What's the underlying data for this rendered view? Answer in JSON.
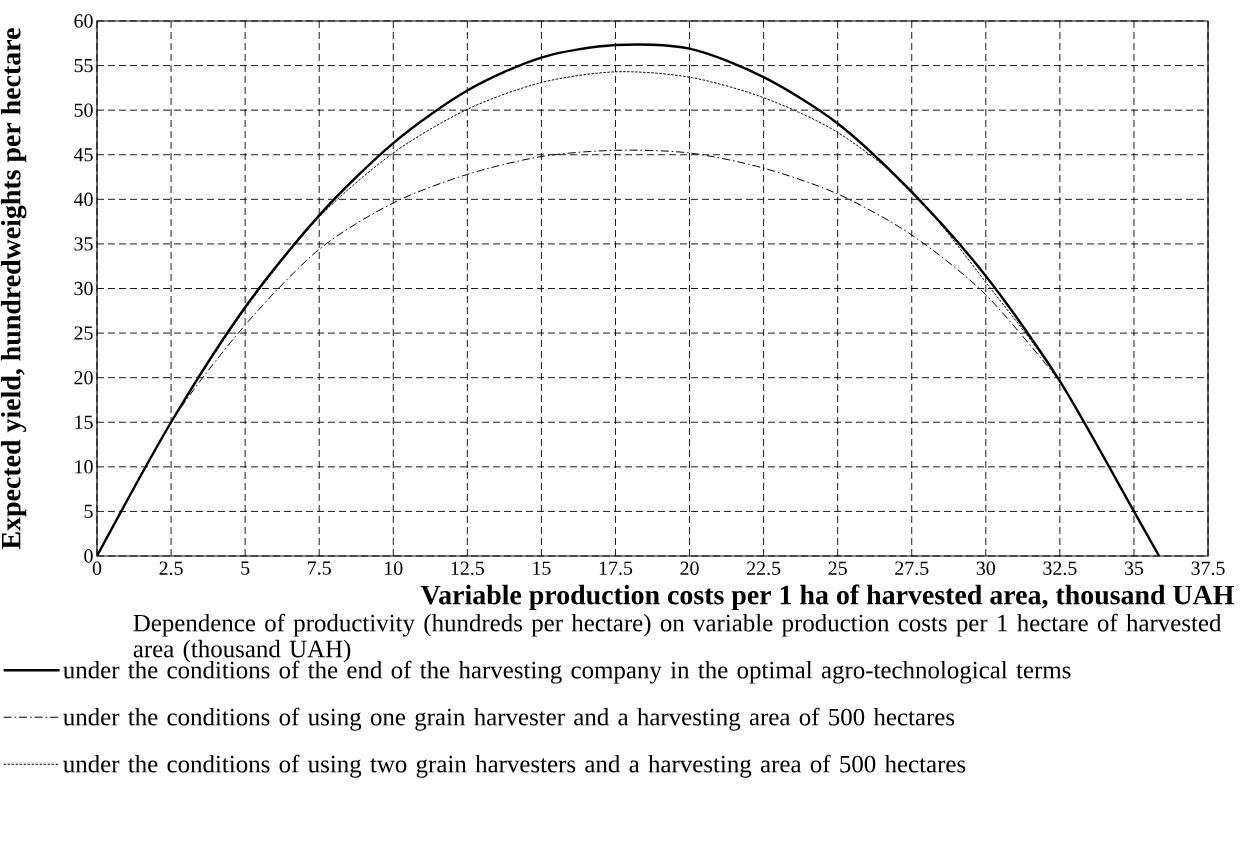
{
  "chart_data": {
    "type": "line",
    "xlabel": "Variable production costs per 1 ha of harvested area, thousand UAH",
    "ylabel": "Expected yield, hundredweights per hectare",
    "legend_title": "Dependence of productivity (hundreds per hectare) on variable production costs per 1 hectare of harvested area (thousand UAH)",
    "x": [
      0,
      2.5,
      5,
      7.5,
      10,
      12.5,
      15,
      17.5,
      20,
      22.5,
      25,
      27.5,
      30,
      32.5,
      35,
      35.85
    ],
    "series": [
      {
        "name": "under the conditions of the end of the harvesting company in the optimal agro-technological terms",
        "color": "#000000",
        "line_style": "solid",
        "values": [
          0,
          15.0,
          27.9,
          38.2,
          46.3,
          52.2,
          55.9,
          57.3,
          56.9,
          53.7,
          48.5,
          40.8,
          31.4,
          19.6,
          5.0,
          0
        ]
      },
      {
        "name": "under the conditions of using one grain harvester and a harvesting area of 500 hectares",
        "color": "#000000",
        "line_style": "dashdot",
        "values": [
          0,
          15.0,
          25.9,
          34.4,
          39.6,
          42.8,
          44.8,
          45.5,
          45.2,
          43.5,
          40.6,
          36.0,
          29.3,
          19.6,
          null,
          null
        ]
      },
      {
        "name": "under the conditions of using two grain harvesters and a harvesting area of 500 hectares",
        "color": "#000000",
        "line_style": "dotted",
        "values": [
          0,
          15.0,
          27.7,
          38.0,
          45.2,
          50.1,
          53.1,
          54.3,
          53.7,
          51.4,
          47.5,
          41.0,
          30.7,
          19.6,
          5.0,
          null
        ]
      }
    ],
    "xlim": [
      0,
      37.5
    ],
    "ylim": [
      0,
      60
    ],
    "xticks": [
      0,
      2.5,
      5,
      7.5,
      10,
      12.5,
      15,
      17.5,
      20,
      22.5,
      25,
      27.5,
      30,
      32.5,
      35,
      37.5
    ],
    "yticks": [
      0,
      5,
      10,
      15,
      20,
      25,
      30,
      35,
      40,
      45,
      50,
      55,
      60
    ],
    "grid": true,
    "legend": "bottom"
  }
}
